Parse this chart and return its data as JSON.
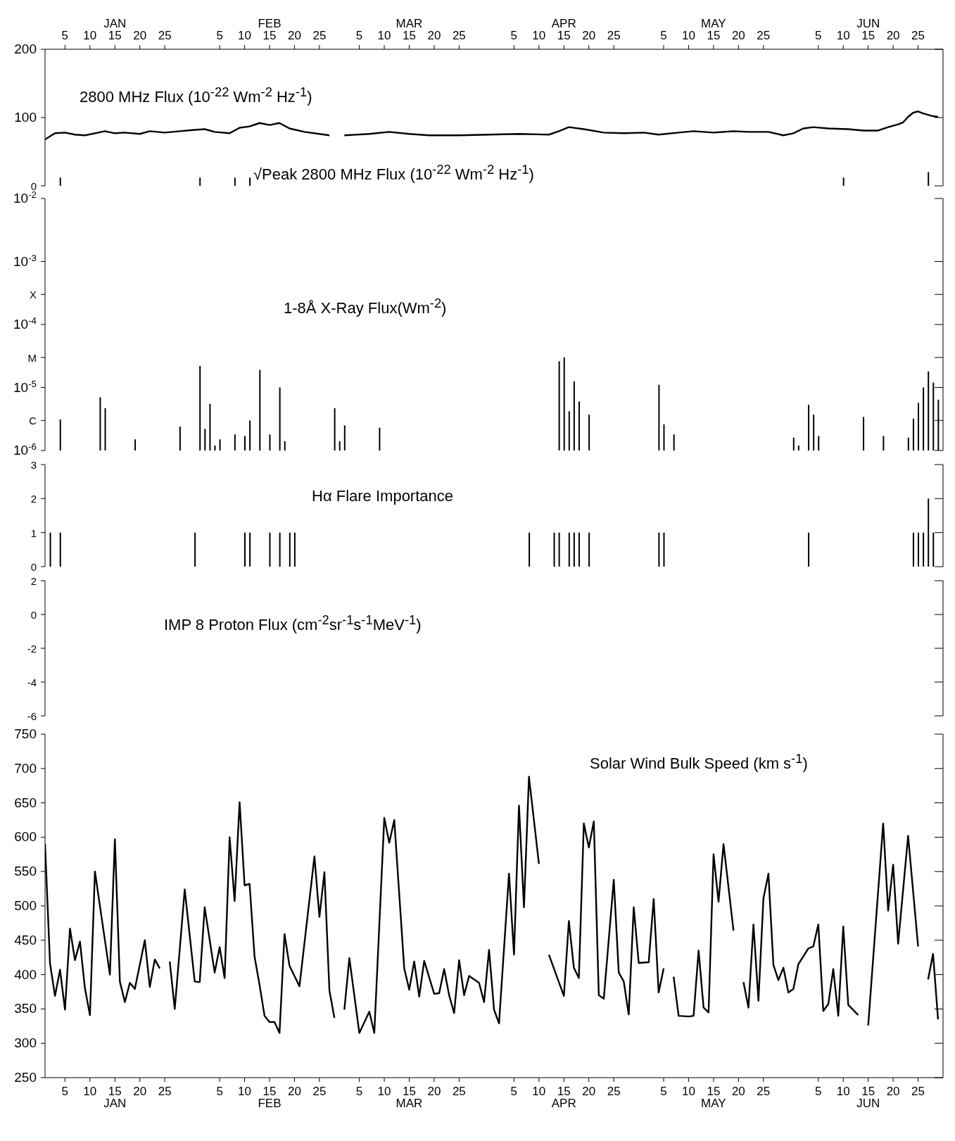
{
  "chart_data": [
    {
      "type": "line",
      "xlim": [
        "--01-01",
        "--06-30"
      ],
      "xticks": [
        {
          "value": "--01-05",
          "label": "5"
        },
        {
          "value": "--01-10",
          "label": "10"
        },
        {
          "value": "--01-15",
          "label": "JAN\n15"
        },
        {
          "value": "--01-20",
          "label": "20"
        },
        {
          "value": "--01-25",
          "label": "25"
        },
        {
          "value": "--02-05",
          "label": "5"
        },
        {
          "value": "--02-10",
          "label": "10"
        },
        {
          "value": "--02-15",
          "label": "FEB\n15"
        },
        {
          "value": "--02-20",
          "label": "20"
        },
        {
          "value": "--02-25",
          "label": "25"
        },
        {
          "value": "--03-05",
          "label": "5"
        },
        {
          "value": "--03-10",
          "label": "10"
        },
        {
          "value": "--03-15",
          "label": "MAR\n15"
        },
        {
          "value": "--03-20",
          "label": "20"
        },
        {
          "value": "--03-25",
          "label": "25"
        },
        {
          "value": "--04-05",
          "label": "5"
        },
        {
          "value": "--04-10",
          "label": "10"
        },
        {
          "value": "--04-15",
          "label": "APR\n15"
        },
        {
          "value": "--04-20",
          "label": "20"
        },
        {
          "value": "--04-25",
          "label": "25"
        },
        {
          "value": "--05-05",
          "label": "5"
        },
        {
          "value": "--05-10",
          "label": "10"
        },
        {
          "value": "--05-15",
          "label": "MAY\n15"
        },
        {
          "value": "--05-20",
          "label": "20"
        },
        {
          "value": "--05-25",
          "label": "25"
        },
        {
          "value": "--06-05",
          "label": "5"
        },
        {
          "value": "--06-10",
          "label": "10"
        },
        {
          "value": "--06-15",
          "label": "JUN\n15"
        },
        {
          "value": "--06-20",
          "label": "20"
        },
        {
          "value": "--06-25",
          "label": "25"
        }
      ],
      "ylim": [
        0,
        200
      ],
      "yticks": [
        0,
        100,
        200
      ],
      "marker": "none",
      "line_style": "solid",
      "series": [
        {
          "name": "2800 MHz Flux (10$^{-22}$ Wm$^{-2}$ Hz$^{-1}$)",
          "color": "#000000",
          "x": [
            "--01-01",
            "--01-03",
            "--01-05",
            "--01-07",
            "--01-09",
            "--01-11",
            "--01-13",
            "--01-15",
            "--01-17",
            "--01-20",
            "--01-22",
            "--01-25",
            "--01-28",
            "--01-31",
            "--02-02",
            "--02-04",
            "--02-07",
            "--02-09",
            "--02-11",
            "--02-13",
            "--02-15",
            "--02-17",
            "--02-19",
            "--02-22",
            "--02-26",
            "--02-27",
            "--02-28",
            "--03-02",
            "--03-07",
            "--03-11",
            "--03-15",
            "--03-19",
            "--03-25",
            "--03-31",
            "--04-06",
            "--04-12",
            "--04-14",
            "--04-16",
            "--04-19",
            "--04-23",
            "--04-27",
            "--05-01",
            "--05-04",
            "--05-08",
            "--05-11",
            "--05-15",
            "--05-19",
            "--05-22",
            "--05-26",
            "--05-29",
            "--05-31",
            "--06-02",
            "--06-04",
            "--06-07",
            "--06-11",
            "--06-14",
            "--06-17",
            "--06-19",
            "--06-21",
            "--06-22",
            "--06-23",
            "--06-24",
            "--06-25",
            "--06-26",
            "--06-28",
            "--06-29"
          ],
          "values": [
            68,
            77,
            78,
            75,
            74,
            77,
            80,
            77,
            78,
            76,
            80,
            78,
            80,
            82,
            83,
            79,
            77,
            85,
            87,
            92,
            89,
            92,
            84,
            79,
            75,
            74,
            null,
            74,
            76,
            79,
            76,
            74,
            74,
            75,
            76,
            75,
            80,
            86,
            83,
            78,
            77,
            78,
            75,
            78,
            80,
            78,
            80,
            79,
            79,
            74,
            77,
            84,
            86,
            84,
            83,
            81,
            81,
            86,
            90,
            93,
            101,
            107,
            109,
            106,
            102,
            101
          ]
        },
        {
          "name": "√Peak 2800 MHz Flux (10$^{-22}$ Wm$^{-2}$ Hz$^{-1}$)",
          "type": "bar",
          "color": "#000000",
          "x": [
            "--01-04",
            "--02-01",
            "--02-08",
            "--02-11",
            "--06-10",
            "--06-27"
          ],
          "values": [
            12,
            12,
            12,
            12,
            12,
            20
          ]
        }
      ]
    },
    {
      "type": "bar",
      "title": "1-8Å X-Ray Flux(Wm$^{-2}$)",
      "xlim": [
        "--01-01",
        "--06-30"
      ],
      "tick_labels": "y",
      "log": "y",
      "ylim": [
        1e-06,
        0.01
      ],
      "yticks": [
        {
          "value": 1e-06,
          "label": "10$^{-6}$"
        },
        {
          "value": 3e-06,
          "label": "C"
        },
        {
          "value": 1e-05,
          "label": "10$^{-5}$"
        },
        {
          "value": 3e-05,
          "label": "M"
        },
        {
          "value": 0.0001,
          "label": "10$^{-4}$"
        },
        {
          "value": 0.0003,
          "label": "X"
        },
        {
          "value": 0.001,
          "label": "10$^{-3}$"
        },
        {
          "value": 0.01,
          "label": "10$^{-2}$"
        }
      ],
      "color": "#000000",
      "x": [
        "--01-04",
        "--01-12",
        "--01-13",
        "--01-19",
        "--01-28",
        "--02-01",
        "--02-02",
        "--02-03",
        "--02-04",
        "--02-05",
        "--02-08",
        "--02-10",
        "--02-11",
        "--02-13",
        "--02-15",
        "--02-17",
        "--02-18",
        "--02-28",
        "--03-01",
        "--03-02",
        "--03-09",
        "--04-14",
        "--04-15",
        "--04-16",
        "--04-17",
        "--04-18",
        "--04-20",
        "--05-04",
        "--05-05",
        "--05-07",
        "--05-31",
        "--06-01",
        "--06-03",
        "--06-04",
        "--06-05",
        "--06-14",
        "--06-18",
        "--06-23",
        "--06-24",
        "--06-25",
        "--06-26",
        "--06-27",
        "--06-28",
        "--06-29"
      ],
      "values": [
        3.1e-06,
        7e-06,
        4.7e-06,
        1.5e-06,
        2.4e-06,
        2.2e-05,
        2.2e-06,
        5.5e-06,
        1.2e-06,
        1.5e-06,
        1.8e-06,
        1.7e-06,
        3e-06,
        1.9e-05,
        1.8e-06,
        1e-05,
        1.4e-06,
        4.7e-06,
        1.4e-06,
        2.5e-06,
        2.3e-06,
        2.6e-05,
        3e-05,
        4.2e-06,
        1.25e-05,
        6e-06,
        3.7e-06,
        1.1e-05,
        2.6e-06,
        1.8e-06,
        1.6e-06,
        1.2e-06,
        5.3e-06,
        3.7e-06,
        1.7e-06,
        3.4e-06,
        1.7e-06,
        1.6e-06,
        3.2e-06,
        5.7e-06,
        1e-05,
        1.8e-05,
        1.2e-05,
        6.4e-06
      ]
    },
    {
      "type": "bar",
      "title": "Hα Flare Importance",
      "xlim": [
        "--01-01",
        "--06-30"
      ],
      "tick_labels": "y",
      "ylim": [
        0,
        3
      ],
      "yticks": [
        0,
        1,
        2,
        3
      ],
      "color": "#000000",
      "x": [
        "--01-02",
        "--01-04",
        "--01-31",
        "--02-10",
        "--02-11",
        "--02-15",
        "--02-17",
        "--02-19",
        "--02-20",
        "--04-08",
        "--04-13",
        "--04-14",
        "--04-16",
        "--04-17",
        "--04-18",
        "--04-20",
        "--05-04",
        "--05-05",
        "--06-03",
        "--06-24",
        "--06-25",
        "--06-26",
        "--06-27",
        "--06-28"
      ],
      "values": [
        1,
        1,
        1,
        1,
        1,
        1,
        1,
        1,
        1,
        1,
        1,
        1,
        1,
        1,
        1,
        1,
        1,
        1,
        1,
        1,
        1,
        1,
        2,
        1
      ]
    },
    {
      "type": "line",
      "title": "IMP 8 Proton Flux (cm$^{-2}$sr$^{-1}$s$^{-1}$MeV$^{-1}$)",
      "xlim": [
        "--01-01",
        "--06-30"
      ],
      "tick_labels": "y",
      "ylim": [
        -6,
        2
      ],
      "yticks": [
        -6,
        -4,
        -2,
        0,
        2
      ]
    },
    {
      "type": "line",
      "title": "Solar Wind Bulk Speed (km s$^{-1}$)",
      "xlim": [
        "--01-01",
        "--06-30"
      ],
      "xticks": [
        {
          "value": "--01-05",
          "label": "5"
        },
        {
          "value": "--01-10",
          "label": "10"
        },
        {
          "value": "--01-15",
          "label": "15\nJAN"
        },
        {
          "value": "--01-20",
          "label": "20"
        },
        {
          "value": "--01-25",
          "label": "25"
        },
        {
          "value": "--02-05",
          "label": "5"
        },
        {
          "value": "--02-10",
          "label": "10"
        },
        {
          "value": "--02-15",
          "label": "15\nFEB"
        },
        {
          "value": "--02-20",
          "label": "20"
        },
        {
          "value": "--02-25",
          "label": "25"
        },
        {
          "value": "--03-05",
          "label": "5"
        },
        {
          "value": "--03-10",
          "label": "10"
        },
        {
          "value": "--03-15",
          "label": "15\nMAR"
        },
        {
          "value": "--03-20",
          "label": "20"
        },
        {
          "value": "--03-25",
          "label": "25"
        },
        {
          "value": "--04-05",
          "label": "5"
        },
        {
          "value": "--04-10",
          "label": "10"
        },
        {
          "value": "--04-15",
          "label": "15\nAPR"
        },
        {
          "value": "--04-20",
          "label": "20"
        },
        {
          "value": "--04-25",
          "label": "25"
        },
        {
          "value": "--05-05",
          "label": "5"
        },
        {
          "value": "--05-10",
          "label": "10"
        },
        {
          "value": "--05-15",
          "label": "15\nMAY"
        },
        {
          "value": "--05-20",
          "label": "20"
        },
        {
          "value": "--05-25",
          "label": "25"
        },
        {
          "value": "--06-05",
          "label": "5"
        },
        {
          "value": "--06-10",
          "label": "10"
        },
        {
          "value": "--06-15",
          "label": "15\nJUN"
        },
        {
          "value": "--06-20",
          "label": "20"
        },
        {
          "value": "--06-25",
          "label": "25"
        }
      ],
      "ylim": [
        250,
        750
      ],
      "yticks": [
        250,
        300,
        350,
        400,
        450,
        500,
        550,
        600,
        650,
        700,
        750
      ],
      "marker": "none",
      "line_style": "solid",
      "color": "#000000",
      "x": [
        "--01-01",
        "--01-02",
        "--01-03",
        "--01-04",
        "--01-05",
        "--01-06",
        "--01-07",
        "--01-08",
        "--01-09",
        "--01-10",
        "--01-11",
        "--01-14",
        "--01-15",
        "--01-16",
        "--01-17",
        "--01-18",
        "--01-19",
        "--01-21",
        "--01-22",
        "--01-23",
        "--01-24",
        "--01-25",
        "--01-26",
        "--01-27",
        "--01-29",
        "--01-31",
        "--02-01",
        "--02-02",
        "--02-04",
        "--02-05",
        "--02-06",
        "--02-07",
        "--02-08",
        "--02-09",
        "--02-10",
        "--02-11",
        "--02-12",
        "--02-13",
        "--02-14",
        "--02-15",
        "--02-16",
        "--02-17",
        "--02-18",
        "--02-19",
        "--02-21",
        "--02-24",
        "--02-25",
        "--02-26",
        "--02-27",
        "--02-28",
        "--03-01",
        "--03-02",
        "--03-03",
        "--03-05",
        "--03-07",
        "--03-08",
        "--03-10",
        "--03-11",
        "--03-12",
        "--03-14",
        "--03-15",
        "--03-16",
        "--03-17",
        "--03-18",
        "--03-20",
        "--03-21",
        "--03-22",
        "--03-23",
        "--03-24",
        "--03-25",
        "--03-26",
        "--03-27",
        "--03-29",
        "--03-30",
        "--03-31",
        "--04-01",
        "--04-02",
        "--04-04",
        "--04-05",
        "--04-06",
        "--04-07",
        "--04-08",
        "--04-10",
        "--04-11",
        "--04-12",
        "--04-15",
        "--04-16",
        "--04-17",
        "--04-18",
        "--04-19",
        "--04-20",
        "--04-21",
        "--04-22",
        "--04-23",
        "--04-25",
        "--04-26",
        "--04-27",
        "--04-28",
        "--04-29",
        "--04-30",
        "--05-02",
        "--05-03",
        "--05-04",
        "--05-05",
        "--05-06",
        "--05-07",
        "--05-08",
        "--05-10",
        "--05-11",
        "--05-12",
        "--05-13",
        "--05-14",
        "--05-15",
        "--05-16",
        "--05-17",
        "--05-19",
        "--05-20",
        "--05-21",
        "--05-22",
        "--05-23",
        "--05-24",
        "--05-25",
        "--05-26",
        "--05-27",
        "--05-28",
        "--05-29",
        "--05-30",
        "--05-31",
        "--06-01",
        "--06-03",
        "--06-04",
        "--06-05",
        "--06-06",
        "--06-07",
        "--06-08",
        "--06-09",
        "--06-10",
        "--06-11",
        "--06-13",
        "--06-14",
        "--06-15",
        "--06-18",
        "--06-19",
        "--06-20",
        "--06-21",
        "--06-23",
        "--06-25",
        "--06-26",
        "--06-27",
        "--06-28",
        "--06-29"
      ],
      "values": [
        590,
        416,
        369,
        407,
        349,
        467,
        421,
        448,
        380,
        341,
        550,
        400,
        597,
        390,
        360,
        388,
        379,
        450,
        382,
        422,
        409,
        null,
        419,
        350,
        524,
        390,
        389,
        498,
        403,
        440,
        395,
        600,
        507,
        651,
        530,
        532,
        426,
        385,
        340,
        331,
        331,
        315,
        459,
        413,
        383,
        572,
        484,
        549,
        377,
        337,
        null,
        349,
        424,
        315,
        346,
        315,
        628,
        592,
        625,
        409,
        378,
        419,
        368,
        420,
        372,
        373,
        408,
        370,
        344,
        421,
        370,
        398,
        388,
        360,
        436,
        349,
        329,
        547,
        429,
        646,
        498,
        688,
        561,
        null,
        429,
        369,
        478,
        410,
        395,
        620,
        585,
        623,
        370,
        365,
        538,
        403,
        390,
        342,
        498,
        417,
        418,
        510,
        374,
        409,
        null,
        397,
        340,
        339,
        340,
        435,
        352,
        345,
        575,
        506,
        590,
        464,
        null,
        389,
        352,
        473,
        362,
        511,
        547,
        414,
        392,
        410,
        374,
        379,
        415,
        438,
        441,
        473,
        347,
        357,
        408,
        340,
        470,
        356,
        341,
        null,
        326,
        620,
        493,
        560,
        445,
        602,
        441,
        null,
        393,
        430,
        335
      ]
    }
  ]
}
